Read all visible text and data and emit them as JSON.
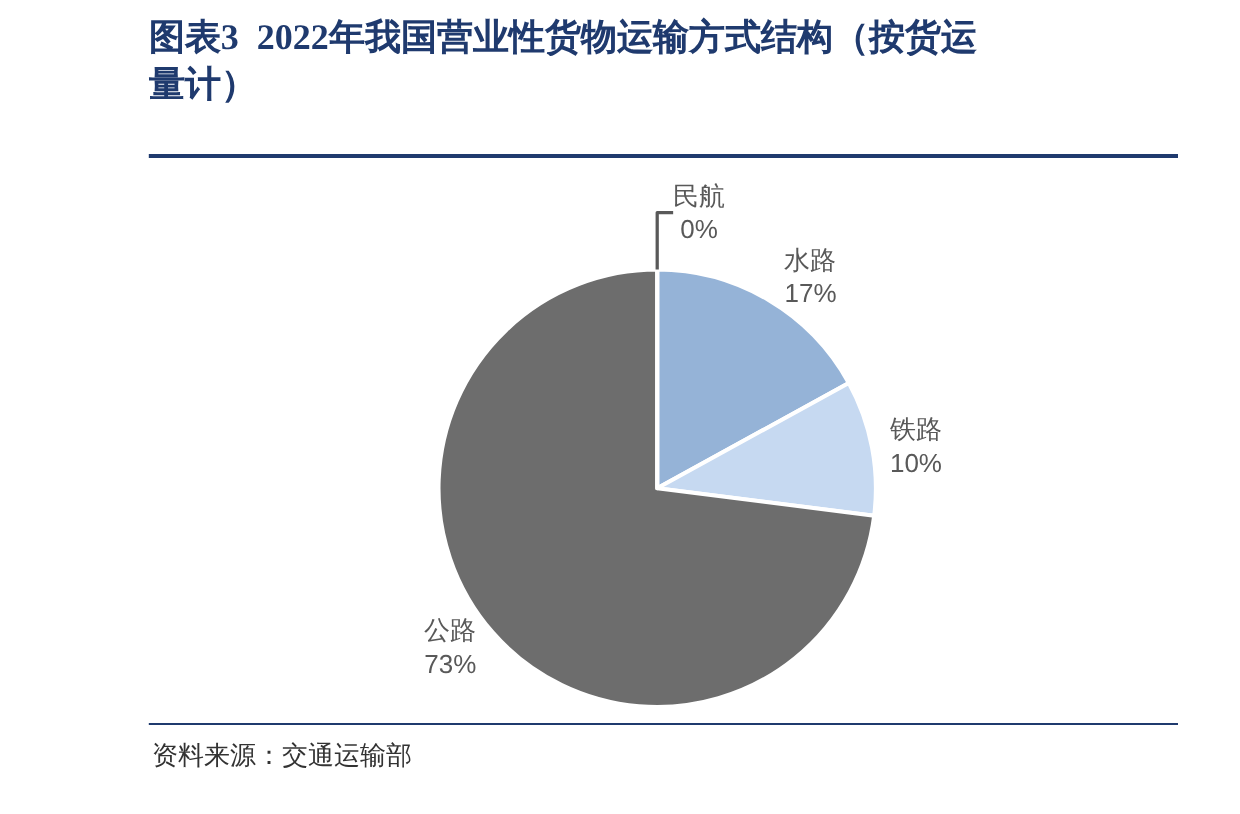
{
  "chart_data": {
    "type": "pie",
    "title": "图表3  2022年我国营业性货物运输方式结构（按货运量计）",
    "categories": [
      "水路",
      "铁路",
      "公路",
      "民航"
    ],
    "values": [
      17,
      10,
      73,
      0
    ],
    "value_labels": [
      "17%",
      "10%",
      "73%",
      "0%"
    ],
    "colors": [
      "#95b3d7",
      "#c6d9f1",
      "#6d6d6d",
      "#a6a6a6"
    ],
    "annotations": [
      "资料来源：交通运输部"
    ]
  }
}
